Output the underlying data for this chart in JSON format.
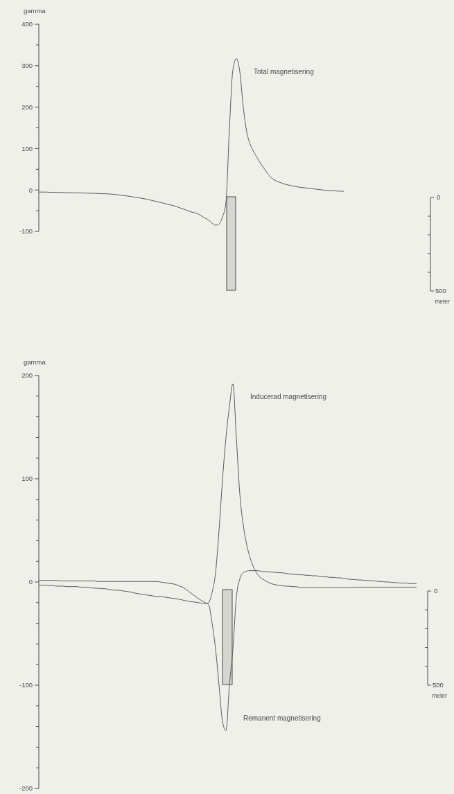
{
  "chart_data": [
    {
      "type": "line",
      "ylabel": "gamma",
      "tick_labels": "y",
      "ylim": [
        -100,
        400
      ],
      "yticks": [
        400,
        {
          "value": 350,
          "label": null
        },
        300,
        {
          "value": 250,
          "label": null
        },
        200,
        {
          "value": 150,
          "label": null
        },
        100,
        {
          "value": 50,
          "label": null
        },
        0,
        {
          "value": -50,
          "label": null
        },
        -100
      ],
      "categories": [
        null,
        null,
        null,
        null,
        null,
        null,
        null,
        null,
        null,
        null,
        null,
        null,
        null,
        null,
        null,
        null,
        null,
        null,
        null,
        null,
        null,
        null,
        null,
        null,
        null,
        null,
        null,
        null,
        null,
        null,
        null,
        null,
        null,
        null,
        null,
        null,
        null,
        null,
        null,
        null,
        null,
        null,
        null,
        null,
        null,
        null,
        null,
        null,
        null,
        null,
        null,
        null,
        null,
        null,
        null,
        null,
        null,
        null,
        null,
        null,
        null,
        null,
        null,
        null,
        null,
        null,
        null,
        null,
        null,
        null,
        null,
        null,
        null,
        null,
        null,
        null,
        null,
        null,
        null,
        null,
        null,
        null,
        null,
        null,
        null,
        null,
        null,
        null,
        null,
        null,
        null,
        null,
        null,
        null,
        null,
        null,
        null,
        null,
        null,
        null,
        null,
        null,
        null,
        null,
        null,
        null,
        null,
        null,
        null,
        null
      ],
      "series": [
        {
          "name": "Total magnetisering",
          "color": "#5a5a5a",
          "values": [
            -5,
            -5,
            -5,
            -5.5,
            -5.5,
            -6,
            -6,
            -6,
            -6.5,
            -6.5,
            -7,
            -7,
            -7,
            -7.5,
            -7.5,
            -8,
            -8,
            -8.5,
            -9,
            -9,
            -9.5,
            -10,
            -11,
            -12,
            -13,
            -14,
            -15,
            -16.5,
            -18,
            -19,
            -20.5,
            -22,
            -24,
            -26,
            -28,
            -30,
            -32,
            -34,
            -36,
            -38,
            -41,
            -44,
            -47,
            -50,
            -53,
            -55,
            -58,
            -63,
            -68,
            -73,
            -80,
            -85,
            -82,
            -65,
            -30,
            150,
            290,
            317,
            285,
            200,
            140,
            110,
            92,
            78,
            64,
            52,
            40,
            30,
            24,
            20,
            17,
            14,
            12,
            10,
            8.5,
            7,
            6,
            5,
            4,
            3,
            2,
            1,
            0,
            -1,
            -1.5,
            -2,
            -2.5,
            -3,
            -3,
            null,
            null,
            null,
            null,
            null,
            null,
            null,
            null,
            null,
            null,
            null,
            null,
            null,
            null,
            null,
            null,
            null,
            null,
            null,
            null,
            null
          ]
        }
      ],
      "annotations": [
        "0",
        "500",
        "meter"
      ]
    },
    {
      "type": "line",
      "ylabel": "gamma",
      "tick_labels": "y",
      "ylim": [
        -200,
        200
      ],
      "yticks": [
        200,
        {
          "value": 180,
          "label": null
        },
        {
          "value": 160,
          "label": null
        },
        {
          "value": 140,
          "label": null
        },
        {
          "value": 120,
          "label": null
        },
        100,
        {
          "value": 80,
          "label": null
        },
        {
          "value": 60,
          "label": null
        },
        {
          "value": 40,
          "label": null
        },
        {
          "value": 20,
          "label": null
        },
        0,
        {
          "value": -20,
          "label": null
        },
        {
          "value": -40,
          "label": null
        },
        {
          "value": -60,
          "label": null
        },
        {
          "value": -80,
          "label": null
        },
        -100,
        {
          "value": -120,
          "label": null
        },
        {
          "value": -140,
          "label": null
        },
        {
          "value": -160,
          "label": null
        },
        {
          "value": -180,
          "label": null
        },
        -200
      ],
      "categories": [
        null,
        null,
        null,
        null,
        null,
        null,
        null,
        null,
        null,
        null,
        null,
        null,
        null,
        null,
        null,
        null,
        null,
        null,
        null,
        null,
        null,
        null,
        null,
        null,
        null,
        null,
        null,
        null,
        null,
        null,
        null,
        null,
        null,
        null,
        null,
        null,
        null,
        null,
        null,
        null,
        null,
        null,
        null,
        null,
        null,
        null,
        null,
        null,
        null,
        null,
        null,
        null,
        null,
        null,
        null,
        null,
        null,
        null,
        null,
        null,
        null,
        null,
        null,
        null,
        null,
        null,
        null,
        null,
        null,
        null,
        null,
        null,
        null,
        null,
        null,
        null,
        null,
        null,
        null,
        null,
        null,
        null,
        null,
        null,
        null,
        null,
        null,
        null,
        null,
        null,
        null,
        null,
        null,
        null,
        null,
        null,
        null,
        null,
        null,
        null,
        null,
        null,
        null,
        null,
        null,
        null,
        null,
        null,
        null,
        null
      ],
      "series": [
        {
          "name": "Inducerad magnetisering",
          "color": "#5a5a5a",
          "values": [
            -3,
            -3,
            -3,
            -3.5,
            -3.5,
            -4,
            -4,
            -4,
            -4.5,
            -4.5,
            -4.5,
            -4.5,
            -5,
            -5,
            -5,
            -5.5,
            -6,
            -6,
            -6.5,
            -6.5,
            -7,
            -7.5,
            -8,
            -8,
            -8.5,
            -9,
            -9.5,
            -10,
            -11,
            -11.5,
            -12,
            -12.5,
            -13,
            -13.5,
            -14,
            -14,
            -14.5,
            -15,
            -15.5,
            -16,
            -16.5,
            -17,
            -18,
            -18.5,
            -19,
            -19.5,
            -20,
            -20.5,
            -21,
            -20,
            -10,
            9,
            50,
            99,
            140,
            170,
            192,
            140,
            85,
            55,
            36,
            23,
            14,
            8,
            4,
            2,
            0,
            -1.5,
            -2.5,
            -3,
            -3.5,
            -4,
            -4,
            -4.5,
            -4.5,
            -5,
            -5.5,
            -5.5,
            -5.5,
            -5.5,
            -5.5,
            -5.5,
            -5.5,
            -5.5,
            -5.5,
            -5.5,
            -5.5,
            -5.5,
            -5.5,
            -5.5,
            -5.5,
            -5,
            -5,
            -5,
            -5,
            -5,
            -5,
            -5,
            -5,
            -5,
            -5,
            -5,
            -5,
            -5,
            -5,
            -5,
            -5,
            -5,
            -5,
            -5
          ]
        },
        {
          "name": "Remanent magnetisering",
          "color": "#5a5a5a",
          "values": [
            1.5,
            1.5,
            1.5,
            1.5,
            1.5,
            1.5,
            1,
            1,
            1,
            1,
            1,
            1,
            1,
            1,
            1,
            1,
            1,
            0.5,
            0.5,
            0.5,
            0.5,
            0.5,
            0.5,
            0.5,
            0.5,
            0.5,
            0.5,
            0.5,
            0.5,
            0.5,
            0.5,
            0.5,
            0.5,
            0.5,
            0.5,
            0,
            -0.5,
            -1,
            -1.5,
            -2,
            -3,
            -4.5,
            -6,
            -8.5,
            -11,
            -13.5,
            -16,
            -18,
            -20,
            -22,
            -40,
            -65,
            -100,
            -135,
            -144,
            -100,
            -65,
            -15,
            3,
            9,
            10.5,
            11,
            11,
            11,
            10.5,
            10,
            10,
            9.5,
            9.5,
            9,
            9,
            8.5,
            8,
            7.5,
            7.5,
            7,
            7,
            6.5,
            6.5,
            6,
            6,
            5.5,
            5,
            5,
            4.5,
            4.5,
            4,
            4,
            3.5,
            3,
            2.5,
            2.5,
            2,
            2,
            1.5,
            1.5,
            1,
            1,
            0.5,
            0.5,
            0,
            0,
            -0.5,
            -0.5,
            -1,
            -1,
            -1,
            -1.5,
            -1.5,
            -1.5
          ]
        }
      ],
      "annotations": [
        "0",
        "500",
        "meter"
      ]
    }
  ]
}
